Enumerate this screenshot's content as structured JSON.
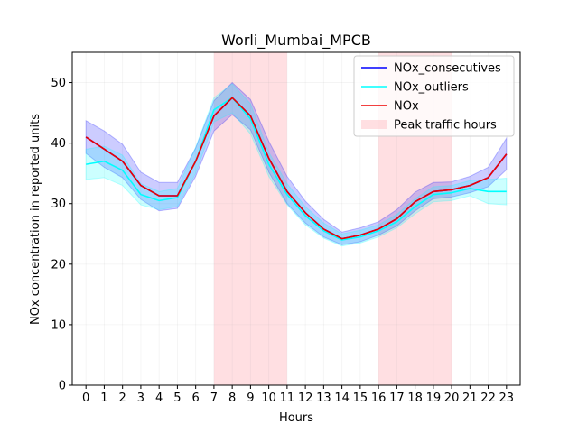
{
  "chart_data": {
    "type": "line",
    "title": "Worli_Mumbai_MPCB",
    "xlabel": "Hours",
    "ylabel": "NOx concentration in reported units",
    "xlim": [
      -0.75,
      23.75
    ],
    "ylim": [
      0,
      55
    ],
    "x": [
      0,
      1,
      2,
      3,
      4,
      5,
      6,
      7,
      8,
      9,
      10,
      11,
      12,
      13,
      14,
      15,
      16,
      17,
      18,
      19,
      20,
      21,
      22,
      23
    ],
    "x_ticks": [
      "0",
      "1",
      "2",
      "3",
      "4",
      "5",
      "6",
      "7",
      "8",
      "9",
      "10",
      "11",
      "12",
      "13",
      "14",
      "15",
      "16",
      "17",
      "18",
      "19",
      "20",
      "21",
      "22",
      "23"
    ],
    "y_ticks": [
      "0",
      "10",
      "20",
      "30",
      "40",
      "50"
    ],
    "y_tick_values": [
      0,
      10,
      20,
      30,
      40,
      50
    ],
    "grid": true,
    "legend_position": "top-right",
    "shaded_regions": [
      {
        "name": "Peak traffic hours",
        "x_start": 7,
        "x_end": 11,
        "color": "#ffc0c6"
      },
      {
        "name": "Peak traffic hours",
        "x_start": 16,
        "x_end": 20,
        "color": "#ffc0c6"
      }
    ],
    "series": [
      {
        "name": "NOx_consecutives",
        "color": "#0000ff",
        "band_color": "#0000ff",
        "values": [
          41.0,
          39.0,
          37.0,
          33.0,
          31.3,
          31.3,
          37.0,
          44.5,
          47.5,
          44.5,
          37.5,
          32.0,
          28.5,
          25.8,
          24.2,
          24.8,
          25.8,
          27.5,
          30.3,
          32.0,
          32.3,
          33.0,
          34.3,
          38.2
        ],
        "lower": [
          38.3,
          36.0,
          34.3,
          30.7,
          28.8,
          29.2,
          34.5,
          42.0,
          44.7,
          42.2,
          35.2,
          30.0,
          26.8,
          24.5,
          23.2,
          23.7,
          24.8,
          26.3,
          28.8,
          30.8,
          31.1,
          31.8,
          32.8,
          35.6
        ],
        "upper": [
          43.7,
          42.0,
          39.8,
          35.2,
          33.5,
          33.5,
          39.2,
          47.0,
          50.0,
          47.2,
          40.3,
          34.5,
          30.4,
          27.4,
          25.3,
          26.0,
          27.0,
          29.0,
          31.9,
          33.5,
          33.6,
          34.5,
          36.0,
          40.8
        ]
      },
      {
        "name": "NOx_outliers",
        "color": "#00ffff",
        "band_color": "#00ffff",
        "values": [
          36.5,
          37.0,
          35.5,
          31.5,
          30.5,
          31.0,
          37.0,
          45.5,
          47.5,
          44.0,
          36.5,
          31.5,
          28.0,
          25.5,
          24.0,
          24.5,
          25.5,
          27.0,
          29.5,
          31.5,
          31.8,
          32.5,
          32.0,
          32.0
        ],
        "lower": [
          34.0,
          34.3,
          33.0,
          29.8,
          29.0,
          29.5,
          35.0,
          43.5,
          45.0,
          41.5,
          34.5,
          29.8,
          26.5,
          24.3,
          23.0,
          23.5,
          24.5,
          26.0,
          28.3,
          30.3,
          30.5,
          31.3,
          30.0,
          29.8
        ],
        "upper": [
          39.0,
          39.5,
          38.0,
          33.3,
          32.0,
          32.5,
          39.3,
          47.5,
          49.8,
          46.5,
          38.5,
          33.3,
          29.5,
          26.8,
          25.0,
          25.6,
          26.5,
          28.2,
          30.8,
          32.8,
          33.0,
          33.8,
          34.0,
          34.2
        ]
      },
      {
        "name": "NOx",
        "color": "#ee0000",
        "band_color": null,
        "values": [
          41.0,
          39.0,
          37.0,
          33.0,
          31.3,
          31.3,
          37.0,
          44.5,
          47.5,
          44.5,
          37.5,
          32.0,
          28.5,
          25.8,
          24.2,
          24.8,
          25.8,
          27.5,
          30.3,
          32.0,
          32.3,
          33.0,
          34.3,
          38.2
        ]
      }
    ]
  }
}
